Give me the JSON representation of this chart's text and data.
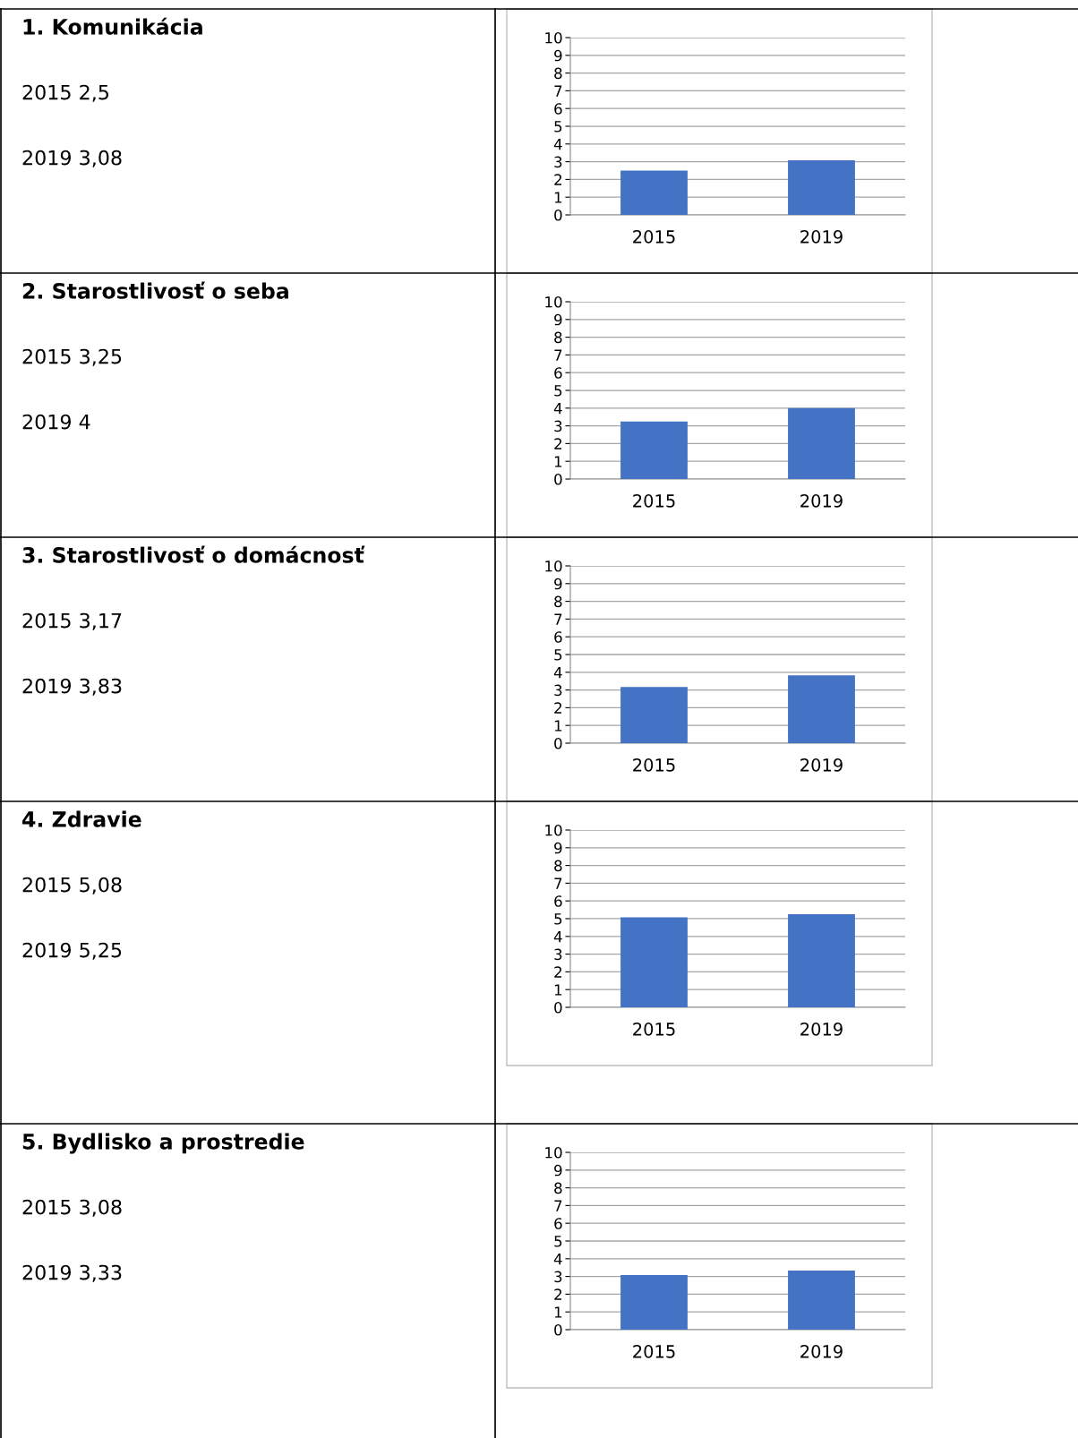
{
  "chart_data": [
    {
      "type": "bar",
      "categories": [
        "2015",
        "2019"
      ],
      "values": [
        2.5,
        3.08
      ],
      "annotations": [
        "1. Komunikácia",
        "2015 2,5",
        "2019 3,08"
      ],
      "color": "#4472c4",
      "ylim": [
        0,
        10
      ],
      "yticks": [
        0,
        1,
        2,
        3,
        4,
        5,
        6,
        7,
        8,
        9,
        10
      ],
      "grid": "y"
    },
    {
      "type": "bar",
      "categories": [
        "2015",
        "2019"
      ],
      "values": [
        3.25,
        4
      ],
      "annotations": [
        "2. Starostlivosť o seba",
        "2015 3,25",
        "2019 4"
      ],
      "color": "#4472c4",
      "ylim": [
        0,
        10
      ],
      "yticks": [
        0,
        1,
        2,
        3,
        4,
        5,
        6,
        7,
        8,
        9,
        10
      ],
      "grid": "y"
    },
    {
      "type": "bar",
      "categories": [
        "2015",
        "2019"
      ],
      "values": [
        3.17,
        3.83
      ],
      "annotations": [
        "3. Starostlivosť o domácnosť",
        "2015 3,17",
        "2019 3,83"
      ],
      "color": "#4472c4",
      "ylim": [
        0,
        10
      ],
      "yticks": [
        0,
        1,
        2,
        3,
        4,
        5,
        6,
        7,
        8,
        9,
        10
      ],
      "grid": "y"
    },
    {
      "type": "bar",
      "categories": [
        "2015",
        "2019"
      ],
      "values": [
        5.08,
        5.25
      ],
      "annotations": [
        "4. Zdravie",
        "2015 5,08",
        "2019 5,25"
      ],
      "color": "#4472c4",
      "ylim": [
        0,
        10
      ],
      "yticks": [
        0,
        1,
        2,
        3,
        4,
        5,
        6,
        7,
        8,
        9,
        10
      ],
      "grid": "y"
    },
    {
      "type": "bar",
      "categories": [
        "2015",
        "2019"
      ],
      "values": [
        3.08,
        3.33
      ],
      "annotations": [
        "5. Bydlisko a prostredie",
        "2015 3,08",
        "2019 3,33"
      ],
      "color": "#4472c4",
      "ylim": [
        0,
        10
      ],
      "yticks": [
        0,
        1,
        2,
        3,
        4,
        5,
        6,
        7,
        8,
        9,
        10
      ],
      "grid": "y"
    }
  ]
}
